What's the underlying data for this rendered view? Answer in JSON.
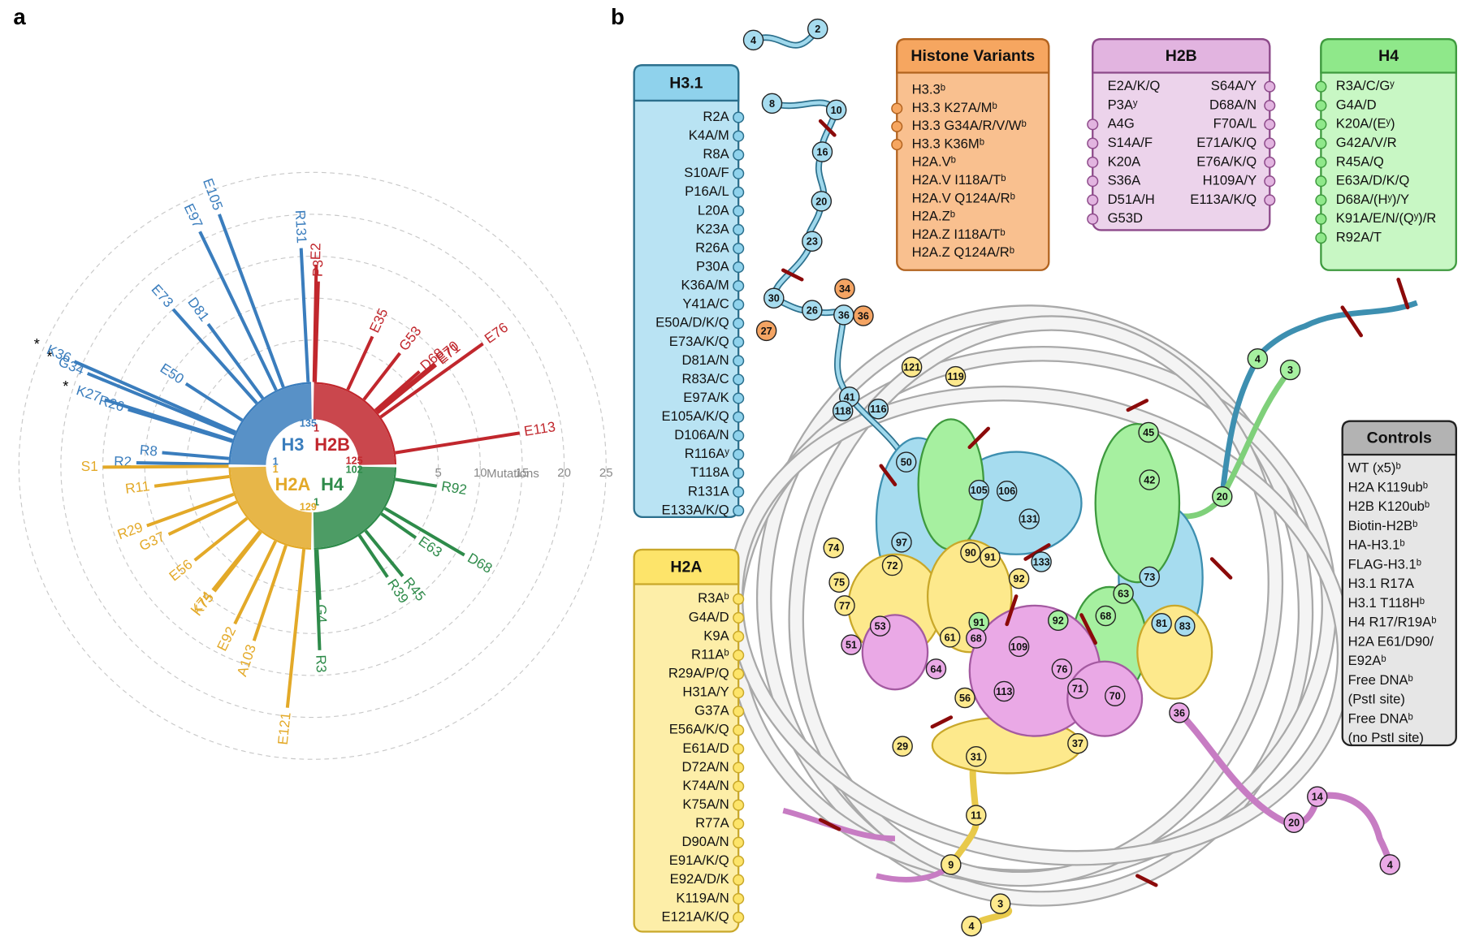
{
  "panel_labels": [
    "a",
    "b"
  ],
  "chart_data": {
    "type": "radial-bar",
    "axis_label": "Mutations",
    "rlim": [
      0,
      25
    ],
    "rticks": [
      5,
      10,
      15,
      20,
      25
    ],
    "annotation": "*",
    "series": [
      {
        "name": "H3",
        "color": "#3a7dbd",
        "range": [
          1,
          135
        ],
        "categories": [
          "R2",
          "R8",
          "R26",
          "K27",
          "G34",
          "K36",
          "E50",
          "E73",
          "D81",
          "E97",
          "E105",
          "R131"
        ],
        "x": [
          2,
          8,
          26,
          27,
          34,
          36,
          50,
          73,
          81,
          97,
          105,
          131
        ],
        "values": [
          11,
          8,
          13,
          16,
          19,
          21,
          8,
          15,
          11,
          21,
          22,
          16
        ],
        "annotated": [
          3,
          4,
          5
        ]
      },
      {
        "name": "H2B",
        "color": "#c1272d",
        "range": [
          1,
          125
        ],
        "categories": [
          "E2",
          "P3",
          "E35",
          "G53",
          "D68",
          "E70",
          "E71",
          "E76",
          "E113"
        ],
        "x": [
          2,
          3,
          35,
          53,
          68,
          70,
          71,
          76,
          113
        ],
        "values": [
          14,
          12,
          7,
          7,
          7,
          9,
          9,
          15,
          15
        ]
      },
      {
        "name": "H4",
        "color": "#2e8b4a",
        "range": [
          1,
          102
        ],
        "categories": [
          "R3",
          "G4",
          "R39",
          "R45",
          "E63",
          "D68",
          "R92"
        ],
        "x": [
          3,
          4,
          39,
          45,
          63,
          68,
          92
        ],
        "values": [
          12,
          6,
          6,
          7,
          5,
          11,
          5
        ]
      },
      {
        "name": "H2A",
        "color": "#e3a928",
        "range": [
          1,
          129
        ],
        "categories": [
          "S1",
          "R11",
          "R29",
          "G37",
          "E56",
          "K74",
          "K75",
          "E92",
          "A103",
          "E121"
        ],
        "x": [
          1,
          11,
          29,
          37,
          56,
          74,
          75,
          92,
          103,
          121
        ],
        "values": [
          15,
          9,
          11,
          9,
          8,
          9,
          9,
          11,
          12,
          19
        ]
      }
    ]
  },
  "boxes": [
    {
      "title": "H3.1",
      "items": [
        "R2A",
        "K4A/M",
        "R8A",
        "S10A/F",
        "P16A/L",
        "L20A",
        "K23A",
        "R26A",
        "P30A",
        "K36A/M",
        "Y41A/C",
        "E50A/D/K/Q",
        "E73A/K/Q",
        "D81A/N",
        "R83A/C",
        "E97A/K",
        "E105A/K/Q",
        "D106A/N",
        "R116Aʸ",
        "T118A",
        "R131A",
        "E133A/K/Q"
      ]
    },
    {
      "title": "H2A",
      "items": [
        "R3Aᵇ",
        "G4A/D",
        "K9A",
        "R11Aᵇ",
        "R29A/P/Q",
        "H31A/Y",
        "G37A",
        "E56A/K/Q",
        "E61A/D",
        "D72A/N",
        "K74A/N",
        "K75A/N",
        "R77A",
        "D90A/N",
        "E91A/K/Q",
        "E92A/D/K",
        "K119A/N",
        "E121A/K/Q"
      ]
    },
    {
      "title": "Histone Variants",
      "items": [
        "H3.3ᵇ",
        "H3.3 K27A/Mᵇ",
        "H3.3 G34A/R/V/Wᵇ",
        "H3.3 K36Mᵇ",
        "H2A.Vᵇ",
        "H2A.V I118A/Tᵇ",
        "H2A.V Q124A/Rᵇ",
        "H2A.Zᵇ",
        "H2A.Z I118A/Tᵇ",
        "H2A.Z Q124A/Rᵇ"
      ]
    },
    {
      "title": "H2B",
      "items": [
        "E2A/K/Q",
        "P3Aʸ",
        "A4G",
        "S14A/F",
        "K20A",
        "S36A",
        "D51A/H",
        "G53D",
        "S64A/Y",
        "D68A/N",
        "F70A/L",
        "E71A/K/Q",
        "E76A/K/Q",
        "H109A/Y",
        "E113A/K/Q"
      ]
    },
    {
      "title": "H4",
      "items": [
        "R3A/C/Gʸ",
        "G4A/D",
        "K20A/(Eʸ)",
        "G42A/V/R",
        "R45A/Q",
        "E63A/D/K/Q",
        "D68A/(Hʸ)/Y",
        "K91A/E/N/(Qʸ)/R",
        "R92A/T"
      ]
    },
    {
      "title": "Controls",
      "items": [
        "WT (x5)ᵇ",
        "H2A K119ubᵇ",
        "H2B K120ubᵇ",
        "Biotin-H2Bᵇ",
        "HA-H3.1ᵇ",
        "FLAG-H3.1ᵇ",
        "H3.1 R17A",
        "H3.1 T118Hᵇ",
        "H4 R17/R19Aᵇ",
        "H2A E61/D90/",
        "E92Aᵇ",
        "Free DNAᵇ",
        "(PstI site)",
        "Free DNAᵇ",
        "(no PstI site)"
      ]
    }
  ],
  "structure": {
    "markers": [
      {
        "color": "#a6dcef",
        "labels": [
          4,
          2,
          8,
          10,
          16,
          20,
          23,
          30,
          26,
          36,
          41,
          118,
          116,
          50,
          97,
          105,
          106,
          131,
          133,
          73,
          81,
          83
        ]
      },
      {
        "color": "#f4a463",
        "labels": [
          34,
          36,
          27
        ]
      },
      {
        "color": "#fde98c",
        "labels": [
          121,
          119,
          74,
          75,
          77,
          72,
          90,
          91,
          92,
          61,
          56,
          29,
          31,
          37,
          11,
          9,
          3,
          4
        ]
      },
      {
        "color": "#a6f0a0",
        "labels": [
          4,
          3,
          45,
          42,
          20,
          63,
          68,
          91,
          92
        ]
      },
      {
        "color": "#eaa9e6",
        "labels": [
          53,
          51,
          64,
          68,
          109,
          76,
          71,
          70,
          113,
          36,
          14,
          20,
          4
        ]
      }
    ]
  }
}
